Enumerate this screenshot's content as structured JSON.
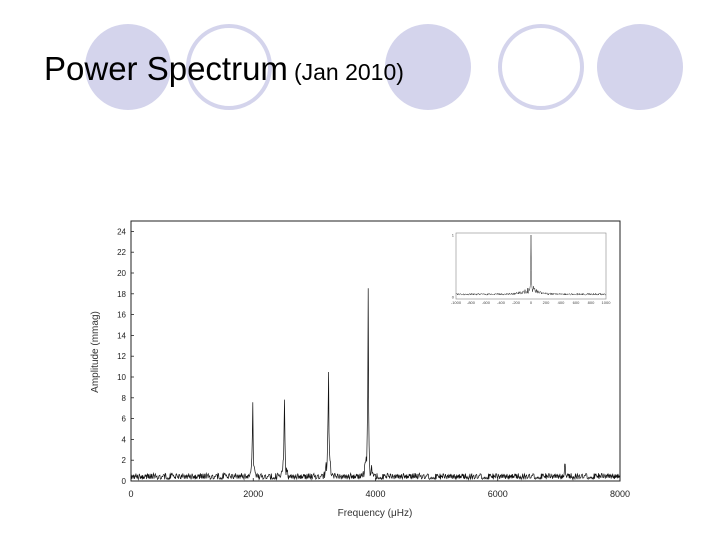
{
  "slide": {
    "title": "Power Spectrum",
    "subtitle": "(Jan 2010)"
  },
  "colors": {
    "decor_circle": "#d4d4ec",
    "spectrum": "#111111",
    "inset_frame": "#888888"
  },
  "chart_data": {
    "type": "line",
    "xlabel": "Frequency (μHz)",
    "ylabel": "Amplitude (mmag)",
    "xlim": [
      0,
      8000
    ],
    "ylim": [
      0,
      25
    ],
    "x_ticks": [
      0,
      2000,
      4000,
      6000,
      8000
    ],
    "y_ticks": [
      0,
      2,
      4,
      6,
      8,
      10,
      12,
      14,
      16,
      18,
      20,
      22,
      24
    ],
    "noise_level": 0.6,
    "peaks": [
      {
        "x": 1990,
        "y": 8.0
      },
      {
        "x": 2510,
        "y": 9.7
      },
      {
        "x": 3230,
        "y": 12.5
      },
      {
        "x": 3880,
        "y": 16.0
      },
      {
        "x": 7100,
        "y": 2.3
      }
    ],
    "inset": {
      "type": "line",
      "x_ticks": [
        -1000,
        -800,
        -600,
        -400,
        -200,
        0,
        200,
        400,
        600,
        800,
        1000
      ],
      "y_ticks": [
        0,
        1
      ],
      "peak": {
        "x": 0,
        "y": 1
      }
    }
  }
}
